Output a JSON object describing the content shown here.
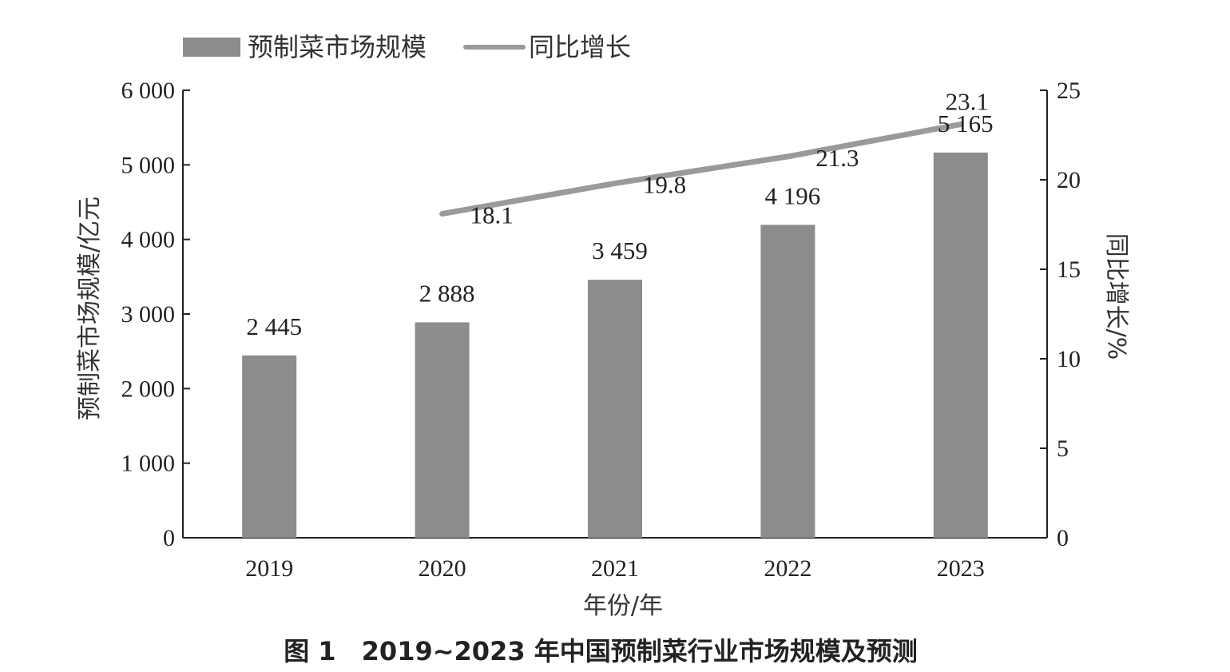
{
  "chart_data": {
    "type": "bar",
    "caption": "图 1　2019~2023 年中国预制菜行业市场规模及预测",
    "categories": [
      "2019",
      "2020",
      "2021",
      "2022",
      "2023"
    ],
    "xlabel": "年份/年",
    "ylabel": "预制菜市场规模/亿元",
    "y2label": "同比增长/%",
    "ylim": [
      0,
      6000
    ],
    "y2lim": [
      0,
      25
    ],
    "yticks": [
      "0",
      "1 000",
      "2 000",
      "3 000",
      "4 000",
      "5 000",
      "6 000"
    ],
    "y2ticks": [
      "0",
      "5",
      "10",
      "15",
      "20",
      "25"
    ],
    "legend_position": "top-left",
    "grid": false,
    "series": [
      {
        "name": "预制菜市场规模",
        "type": "bar",
        "axis": "left",
        "color": "#8c8c8e",
        "values": [
          2445,
          2888,
          3459,
          4196,
          5165
        ],
        "labels": [
          "2 445",
          "2 888",
          "3 459",
          "4 196",
          "5 165"
        ]
      },
      {
        "name": "同比增长",
        "type": "line",
        "axis": "right",
        "color": "#9a9a9c",
        "values": [
          null,
          18.1,
          19.8,
          21.3,
          23.1
        ],
        "labels": [
          "",
          "18.1",
          "19.8",
          "21.3",
          "23.1"
        ]
      }
    ]
  }
}
